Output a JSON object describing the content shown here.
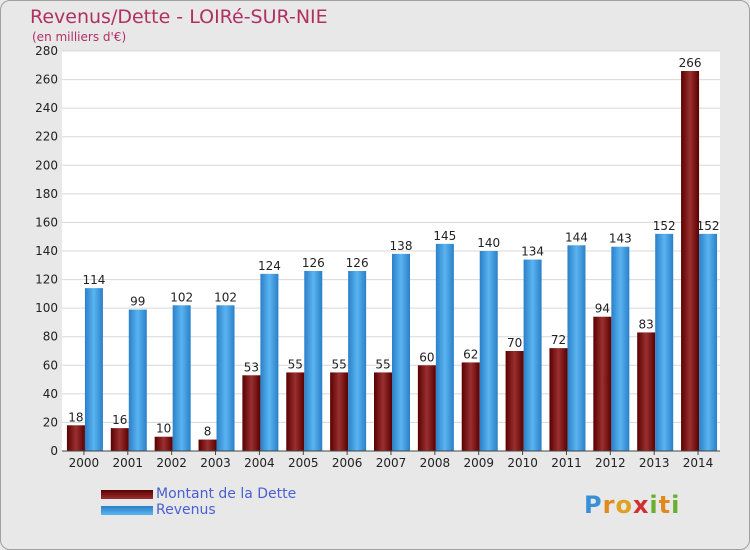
{
  "chart_data": {
    "type": "bar",
    "title": "Revenus/Dette - LOIRé-SUR-NIE",
    "subtitle": "(en milliers d'€)",
    "categories": [
      "2000",
      "2001",
      "2002",
      "2003",
      "2004",
      "2005",
      "2006",
      "2007",
      "2008",
      "2009",
      "2010",
      "2011",
      "2012",
      "2013",
      "2014"
    ],
    "series": [
      {
        "name": "Montant de la Dette",
        "color": "#7a1010",
        "values": [
          18,
          16,
          10,
          8,
          53,
          55,
          55,
          55,
          60,
          62,
          70,
          72,
          94,
          83,
          266
        ]
      },
      {
        "name": "Revenus",
        "color": "#3a9be0",
        "values": [
          114,
          99,
          102,
          102,
          124,
          126,
          126,
          138,
          145,
          140,
          134,
          144,
          143,
          152,
          152
        ]
      }
    ],
    "ylim": [
      0,
      280
    ],
    "yticks": [
      0,
      20,
      40,
      60,
      80,
      100,
      120,
      140,
      160,
      180,
      200,
      220,
      240,
      260,
      280
    ],
    "grid": true,
    "legend_position": "bottom-left"
  },
  "logo": {
    "letters": [
      "P",
      "r",
      "o",
      "x",
      "i",
      "t",
      "i"
    ],
    "colors": [
      "#3a8fd6",
      "#e08a1e",
      "#e0a020",
      "#d03030",
      "#6ab030",
      "#e08a1e",
      "#6ab030"
    ]
  }
}
